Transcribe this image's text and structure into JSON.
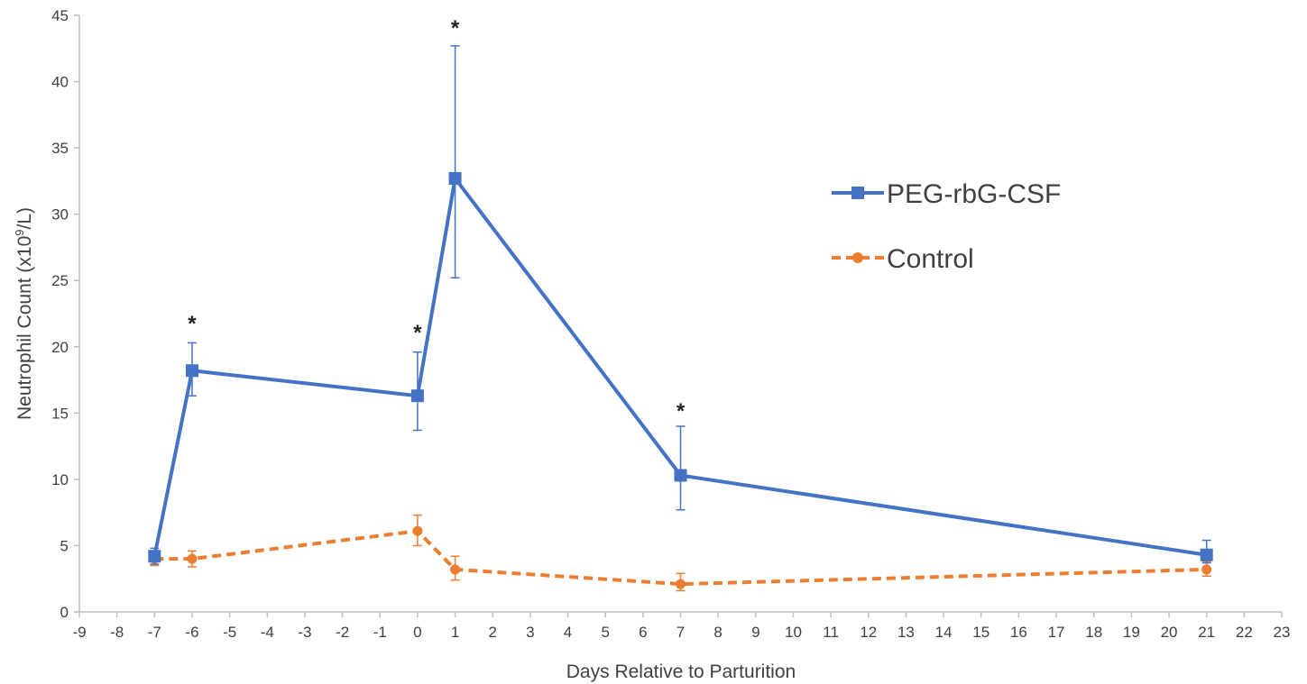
{
  "chart_data": {
    "type": "line",
    "title": "",
    "xlabel": "Days Relative to Parturition",
    "ylabel_parts": {
      "before": "Neutrophil Count (x10",
      "sup": "9",
      "after": "/L)"
    },
    "xlim": [
      -9,
      23
    ],
    "ylim": [
      0,
      45
    ],
    "x_ticks": [
      -9,
      -8,
      -7,
      -6,
      -5,
      -4,
      -3,
      -2,
      -1,
      0,
      1,
      2,
      3,
      4,
      5,
      6,
      7,
      8,
      9,
      10,
      11,
      12,
      13,
      14,
      15,
      16,
      17,
      18,
      19,
      20,
      21,
      22,
      23
    ],
    "y_ticks": [
      0,
      5,
      10,
      15,
      20,
      25,
      30,
      35,
      40,
      45
    ],
    "grid": false,
    "legend_position": "right",
    "series": [
      {
        "name": "PEG-rbG-CSF",
        "color": "#4472C4",
        "marker": "square",
        "dashed": false,
        "x": [
          -7,
          -6,
          0,
          1,
          7,
          21
        ],
        "y": [
          4.2,
          18.2,
          16.3,
          32.7,
          10.3,
          4.3
        ],
        "err_upper": [
          0.6,
          2.1,
          3.3,
          10.0,
          3.7,
          1.1
        ],
        "err_lower": [
          0.6,
          1.9,
          2.6,
          7.5,
          2.6,
          0.6
        ]
      },
      {
        "name": "Control",
        "color": "#ED7D31",
        "marker": "circle",
        "dashed": true,
        "x": [
          -7,
          -6,
          0,
          1,
          7,
          21
        ],
        "y": [
          4.0,
          4.0,
          6.1,
          3.2,
          2.1,
          3.2
        ],
        "err_upper": [
          0.5,
          0.6,
          1.2,
          1.0,
          0.8,
          0.6
        ],
        "err_lower": [
          0.5,
          0.6,
          1.1,
          0.8,
          0.5,
          0.5
        ]
      }
    ],
    "annotations": [
      {
        "text": "*",
        "x": -6,
        "y": 22.3
      },
      {
        "text": "*",
        "x": 0,
        "y": 21.6
      },
      {
        "text": "*",
        "x": 1,
        "y": 44.6
      },
      {
        "text": "*",
        "x": 7,
        "y": 15.7
      }
    ]
  }
}
